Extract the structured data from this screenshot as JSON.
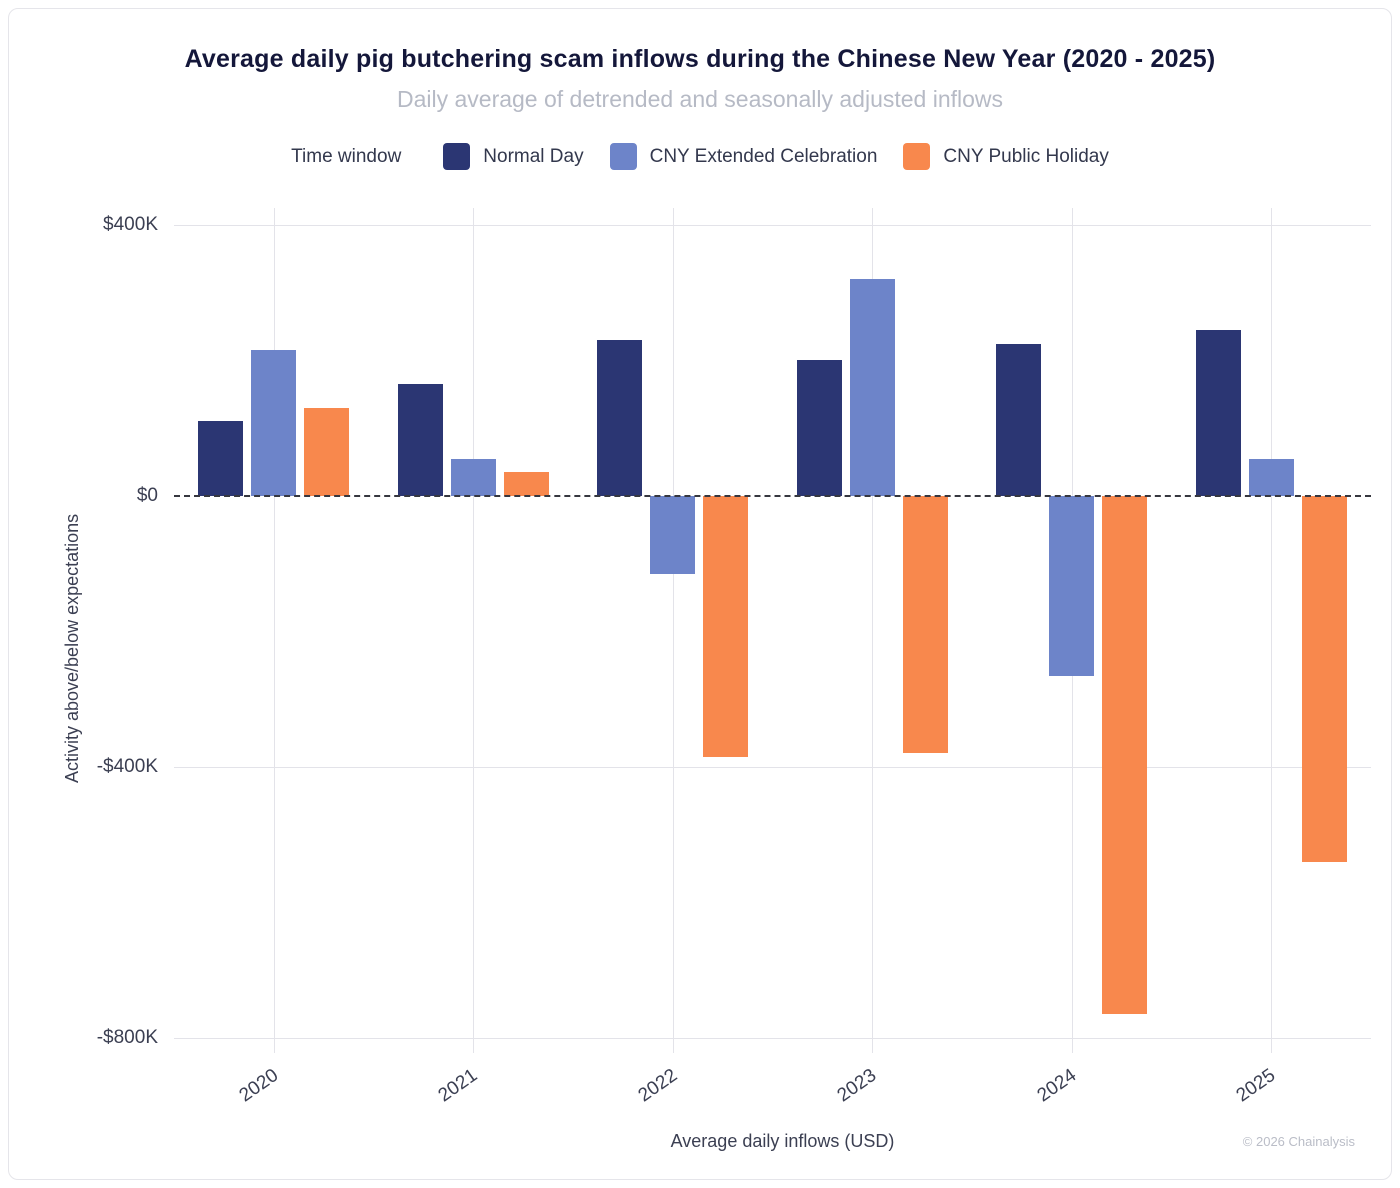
{
  "header": {
    "title": "Average daily pig butchering scam inflows during the Chinese New Year (2020 - 2025)",
    "subtitle": "Daily average of detrended and seasonally adjusted inflows"
  },
  "legend": {
    "label": "Time window"
  },
  "footer": {
    "credit": "© 2026 Chainalysis"
  },
  "chart_data": {
    "type": "bar",
    "title": "Average daily pig butchering scam inflows during the Chinese New Year (2020 - 2025)",
    "subtitle": "Daily average of detrended and seasonally adjusted inflows",
    "xlabel": "Average daily inflows (USD)",
    "ylabel": "Activity above/below expectations",
    "categories": [
      "2020",
      "2021",
      "2022",
      "2023",
      "2024",
      "2025"
    ],
    "series": [
      {
        "name": "Normal Day",
        "color": "#2b3673",
        "values": [
          110000,
          165000,
          230000,
          200000,
          225000,
          245000
        ]
      },
      {
        "name": "CNY Extended Celebration",
        "color": "#6d84c9",
        "values": [
          215000,
          55000,
          -115000,
          320000,
          -265000,
          55000
        ]
      },
      {
        "name": "CNY Public Holiday",
        "color": "#f8884d",
        "values": [
          130000,
          35000,
          -385000,
          -380000,
          -765000,
          -540000
        ]
      }
    ],
    "y_ticks": [
      {
        "value": 400000,
        "label": "$400K"
      },
      {
        "value": 0,
        "label": "$0"
      },
      {
        "value": -400000,
        "label": "-$400K"
      },
      {
        "value": -800000,
        "label": "-$800K"
      }
    ],
    "ylim": [
      -822000,
      425000
    ],
    "grid": true,
    "legend_position": "top",
    "zero_line": "dashed"
  }
}
